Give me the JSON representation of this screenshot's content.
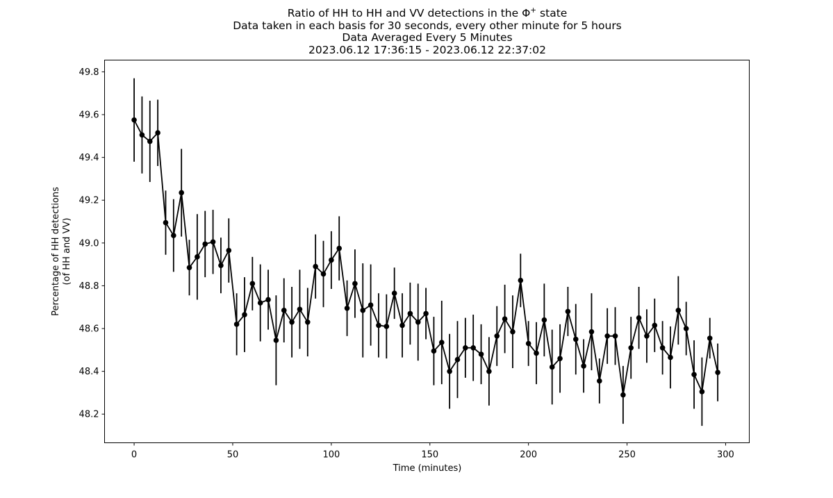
{
  "chart_data": {
    "type": "line",
    "title_lines": [
      "Ratio of HH to HH and VV detections in the Φ",
      "Data taken in each basis for 30 seconds, every other minute for 5 hours",
      "Data Averaged Every 5 Minutes",
      "2023.06.12 17:36:15 - 2023.06.12 22:37:02"
    ],
    "title_superscript": "+",
    "title_suffix": " state",
    "xlabel": "Time (minutes)",
    "ylabel_lines": [
      "Percentage of HH detections",
      "(of HH and VV)"
    ],
    "xlim": [
      -15,
      312
    ],
    "ylim": [
      48.066,
      49.855
    ],
    "xticks": [
      0,
      50,
      100,
      150,
      200,
      250,
      300
    ],
    "yticks": [
      48.2,
      48.4,
      48.6,
      48.8,
      49.0,
      49.2,
      49.4,
      49.6,
      49.8
    ],
    "grid": false,
    "color": "#000000",
    "series": [
      {
        "x": [
          0,
          4,
          8,
          12,
          16,
          20,
          24,
          28,
          32,
          36,
          40,
          44,
          48,
          52,
          56,
          60,
          64,
          68,
          72,
          76,
          80,
          84,
          88,
          92,
          96,
          100,
          104,
          108,
          112,
          116,
          120,
          124,
          128,
          132,
          136,
          140,
          144,
          148,
          152,
          156,
          160,
          164,
          168,
          172,
          176,
          180,
          184,
          188,
          192,
          196,
          200,
          204,
          208,
          212,
          216,
          220,
          224,
          228,
          232,
          236,
          240,
          244,
          248,
          252,
          256,
          260,
          264,
          268,
          272,
          276,
          280,
          284,
          288,
          292,
          296
        ],
        "y": [
          49.575,
          49.505,
          49.475,
          49.515,
          49.095,
          49.035,
          49.235,
          48.885,
          48.935,
          48.995,
          49.005,
          48.895,
          48.965,
          48.62,
          48.665,
          48.81,
          48.72,
          48.735,
          48.545,
          48.685,
          48.63,
          48.69,
          48.63,
          48.89,
          48.855,
          48.92,
          48.975,
          48.695,
          48.81,
          48.685,
          48.71,
          48.615,
          48.61,
          48.765,
          48.615,
          48.67,
          48.63,
          48.67,
          48.495,
          48.535,
          48.4,
          48.455,
          48.51,
          48.51,
          48.48,
          48.4,
          48.565,
          48.645,
          48.585,
          48.825,
          48.53,
          48.485,
          48.64,
          48.42,
          48.46,
          48.68,
          48.55,
          48.425,
          48.585,
          48.355,
          48.565,
          48.565,
          48.29,
          48.51,
          48.65,
          48.565,
          48.615,
          48.51,
          48.465,
          48.685,
          48.6,
          48.385,
          48.305,
          48.555,
          48.395
        ],
        "yerr": [
          0.195,
          0.18,
          0.19,
          0.155,
          0.15,
          0.17,
          0.205,
          0.13,
          0.2,
          0.155,
          0.15,
          0.13,
          0.15,
          0.145,
          0.175,
          0.125,
          0.18,
          0.14,
          0.21,
          0.15,
          0.165,
          0.185,
          0.16,
          0.15,
          0.155,
          0.135,
          0.15,
          0.13,
          0.16,
          0.22,
          0.19,
          0.15,
          0.15,
          0.12,
          0.15,
          0.145,
          0.18,
          0.12,
          0.16,
          0.195,
          0.175,
          0.18,
          0.14,
          0.155,
          0.14,
          0.16,
          0.14,
          0.16,
          0.17,
          0.125,
          0.105,
          0.145,
          0.17,
          0.175,
          0.16,
          0.115,
          0.165,
          0.125,
          0.18,
          0.105,
          0.13,
          0.135,
          0.135,
          0.145,
          0.145,
          0.125,
          0.125,
          0.125,
          0.145,
          0.16,
          0.125,
          0.16,
          0.16,
          0.095,
          0.135
        ]
      }
    ]
  }
}
